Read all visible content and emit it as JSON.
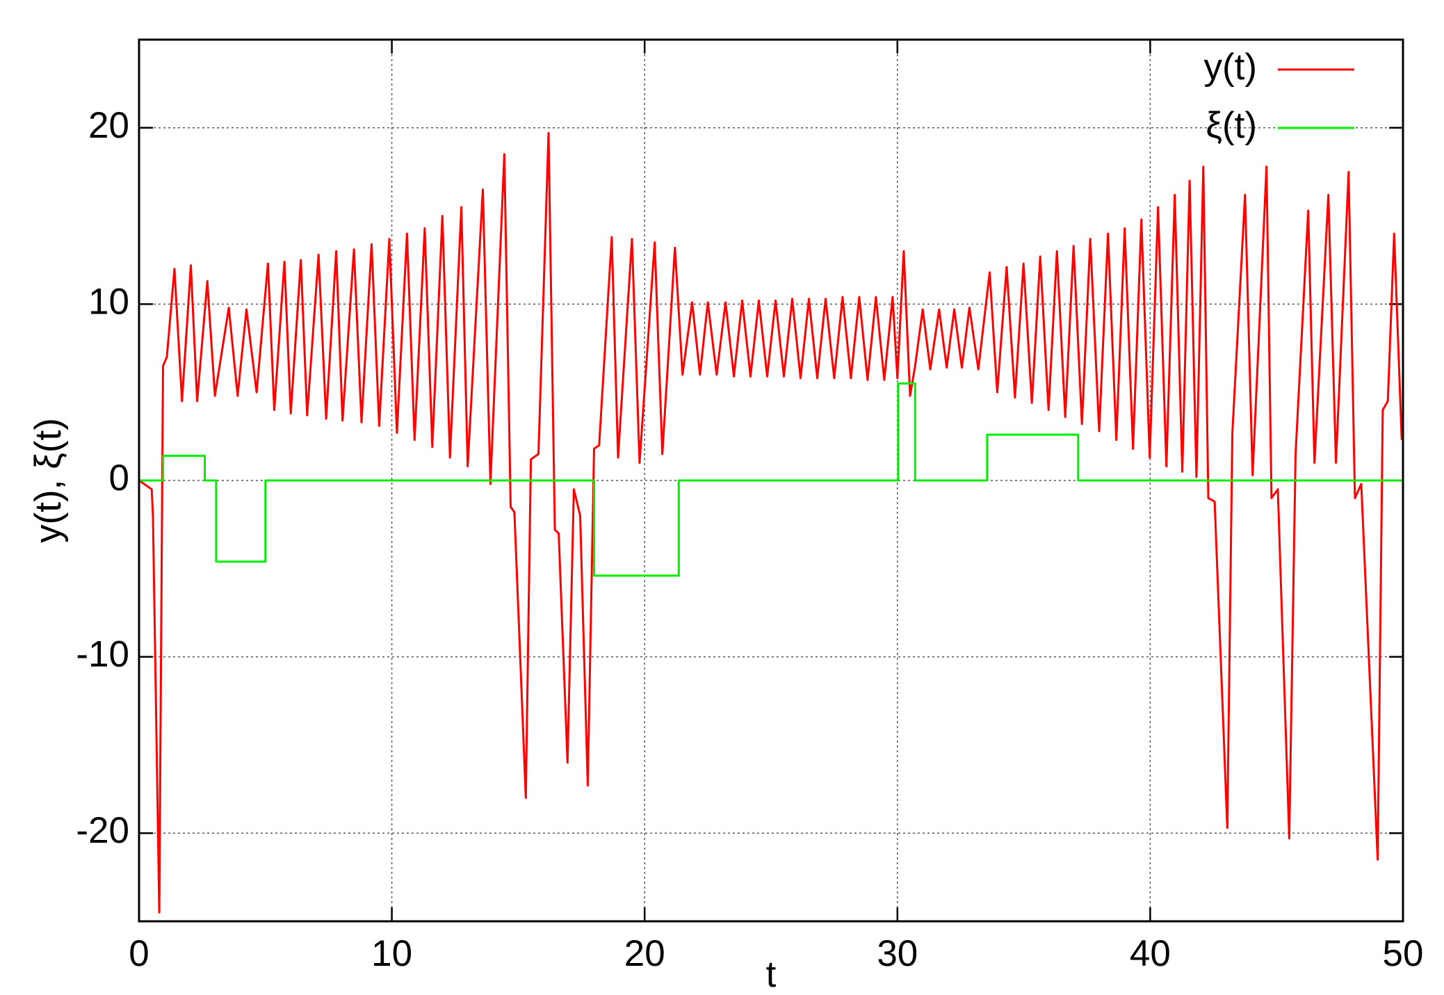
{
  "chart_data": {
    "type": "line",
    "xlabel": "t",
    "ylabel": "y(t), ξ(t)",
    "xlim": [
      0,
      50
    ],
    "ylim": [
      -25,
      25
    ],
    "xticks": [
      0,
      10,
      20,
      30,
      40,
      50
    ],
    "yticks": [
      -20,
      -10,
      0,
      10,
      20
    ],
    "grid": true,
    "legend": "top-right",
    "series": [
      {
        "name": "y(t)",
        "color": "#ff0000",
        "x": [
          0,
          0.5,
          0.55,
          0.8,
          0.95,
          1.1,
          1.4,
          1.7,
          2.05,
          2.3,
          2.7,
          3.0,
          3.55,
          3.9,
          4.25,
          4.65,
          5.1,
          5.35,
          5.75,
          6.0,
          6.4,
          6.65,
          7.1,
          7.4,
          7.8,
          8.05,
          8.5,
          8.8,
          9.2,
          9.5,
          9.9,
          10.2,
          10.6,
          10.9,
          11.3,
          11.6,
          12.0,
          12.3,
          12.75,
          13.0,
          13.6,
          13.9,
          14.45,
          14.7,
          14.85,
          15.3,
          15.5,
          15.8,
          16.2,
          16.45,
          16.6,
          16.95,
          17.2,
          17.45,
          17.75,
          18.0,
          18.2,
          18.7,
          18.95,
          19.5,
          19.8,
          20.4,
          20.7,
          21.2,
          21.5,
          21.88,
          22.19,
          22.5,
          22.85,
          23.2,
          23.53,
          23.86,
          24.19,
          24.52,
          24.85,
          25.18,
          25.51,
          25.84,
          26.17,
          26.5,
          26.83,
          27.16,
          27.5,
          27.83,
          28.16,
          28.49,
          28.82,
          29.15,
          29.48,
          29.81,
          30.0,
          30.25,
          30.5,
          30.7,
          31.0,
          31.3,
          31.65,
          31.95,
          32.25,
          32.55,
          32.85,
          33.2,
          33.65,
          33.95,
          34.32,
          34.65,
          34.99,
          35.32,
          35.65,
          35.98,
          36.31,
          36.64,
          36.97,
          37.3,
          37.63,
          37.98,
          38.33,
          38.66,
          38.99,
          39.32,
          39.65,
          39.98,
          40.31,
          40.64,
          40.97,
          41.27,
          41.56,
          41.83,
          42.1,
          42.3,
          42.55,
          43.05,
          43.25,
          43.75,
          44.05,
          44.6,
          44.8,
          45.05,
          45.5,
          45.75,
          46.25,
          46.5,
          47.05,
          47.35,
          47.85,
          48.1,
          48.35,
          49.0,
          49.2,
          49.4,
          49.65,
          49.95
        ],
        "values": [
          0,
          -0.5,
          -2,
          -24.5,
          6.5,
          7,
          12,
          4.5,
          12.2,
          4.5,
          11.3,
          4.8,
          9.8,
          4.8,
          9.7,
          5.0,
          12.3,
          4.0,
          12.4,
          3.8,
          12.5,
          3.7,
          12.8,
          3.5,
          13.0,
          3.4,
          13.1,
          3.3,
          13.4,
          3.1,
          13.7,
          2.7,
          14.0,
          2.3,
          14.3,
          1.9,
          15.0,
          1.3,
          15.5,
          0.8,
          16.5,
          -0.2,
          18.5,
          -1.5,
          -1.8,
          -18,
          1.2,
          1.5,
          19.7,
          -2.8,
          -3,
          -16,
          -0.5,
          -2,
          -17.3,
          1.8,
          2,
          13.8,
          1.3,
          13.7,
          1.0,
          13.5,
          1.5,
          13.2,
          6.0,
          10.1,
          6.0,
          10.1,
          6.0,
          10.1,
          5.9,
          10.2,
          5.9,
          10.2,
          5.9,
          10.2,
          5.9,
          10.3,
          5.8,
          10.3,
          5.8,
          10.3,
          5.8,
          10.4,
          5.8,
          10.4,
          5.7,
          10.4,
          5.7,
          10.4,
          5.8,
          13,
          4.8,
          6.5,
          9.7,
          6.3,
          9.7,
          6.4,
          9.7,
          6.4,
          9.8,
          6.3,
          11.8,
          5.0,
          12.1,
          4.7,
          12.3,
          4.4,
          12.7,
          4.0,
          13.0,
          3.6,
          13.3,
          3.2,
          13.7,
          2.8,
          14.0,
          2.3,
          14.3,
          1.8,
          14.8,
          1.3,
          15.5,
          0.8,
          16.2,
          0.5,
          17.0,
          0.2,
          17.8,
          -1,
          -1.2,
          -19.7,
          2.7,
          16.2,
          0.3,
          17.8,
          -1,
          -0.5,
          -20.3,
          1.5,
          15.3,
          1.0,
          16.2,
          1.0,
          17.5,
          -1,
          -0.2,
          -21.5,
          4,
          4.5,
          14,
          2.3
        ]
      },
      {
        "name": "ξ(t)",
        "color": "#00ee00",
        "x": [
          0,
          0.95,
          0.95,
          2.6,
          2.6,
          3.05,
          3.05,
          5.0,
          5.0,
          18.0,
          18.0,
          21.35,
          21.35,
          30.03,
          30.03,
          30.7,
          30.7,
          33.55,
          33.55,
          37.15,
          37.15,
          50
        ],
        "values": [
          0,
          0,
          1.4,
          1.4,
          0,
          0,
          -4.6,
          -4.6,
          0,
          0,
          -5.4,
          -5.4,
          0,
          0,
          5.5,
          5.5,
          0,
          0,
          2.6,
          2.6,
          0,
          0
        ]
      }
    ]
  }
}
